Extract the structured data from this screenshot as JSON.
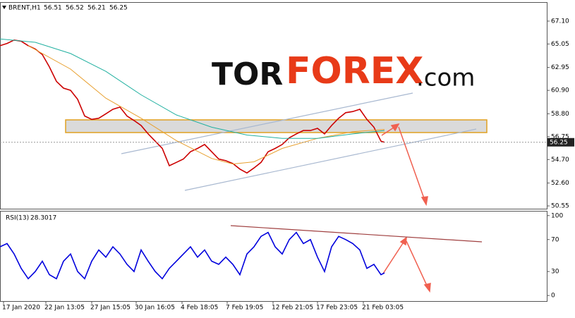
{
  "logo": {
    "part1": "TOR",
    "part2": "FOREX",
    "part3": ".com"
  },
  "chart_data": [
    {
      "type": "line",
      "title": "BRENT,H1",
      "ohlc": [
        56.51,
        56.52,
        56.21,
        56.25
      ],
      "last_price": 56.25,
      "xlim": [
        0,
        775
      ],
      "ylim": [
        50.3,
        68.8
      ],
      "yticks": [
        {
          "value": 67.1,
          "label": "67.10"
        },
        {
          "value": 65.05,
          "label": "65.05"
        },
        {
          "value": 62.95,
          "label": "62.95"
        },
        {
          "value": 60.9,
          "label": "60.90"
        },
        {
          "value": 58.8,
          "label": "58.80"
        },
        {
          "value": 56.75,
          "label": "56.75"
        },
        {
          "value": 54.7,
          "label": "54.70"
        },
        {
          "value": 52.6,
          "label": "52.60"
        },
        {
          "value": 50.55,
          "label": "50.55"
        }
      ],
      "series": [
        {
          "color": "#cc0000",
          "x": [
            0,
            10,
            20,
            30,
            40,
            50,
            60,
            70,
            80,
            90,
            100,
            110,
            120,
            130,
            140,
            150,
            160,
            170,
            180,
            190,
            200,
            210,
            220,
            230,
            240,
            250,
            260,
            270,
            280,
            290,
            300,
            310,
            320,
            330,
            340,
            350,
            360,
            370,
            380,
            390,
            400,
            410,
            420,
            430,
            440,
            450,
            460,
            470,
            480,
            490,
            500,
            510,
            520,
            530,
            540,
            545
          ],
          "values": [
            64.9,
            65.1,
            65.4,
            65.3,
            64.9,
            64.6,
            64.1,
            63.0,
            61.7,
            61.1,
            60.9,
            60.1,
            58.6,
            58.3,
            58.4,
            58.8,
            59.2,
            59.4,
            58.6,
            58.2,
            57.75,
            57.0,
            56.35,
            55.7,
            54.15,
            54.45,
            54.75,
            55.4,
            55.7,
            56.05,
            55.4,
            54.75,
            54.6,
            54.35,
            53.85,
            53.5,
            53.95,
            54.45,
            55.4,
            55.7,
            56.05,
            56.65,
            57.0,
            57.3,
            57.3,
            57.5,
            57.0,
            57.75,
            58.4,
            58.9,
            59.0,
            59.2,
            58.3,
            57.6,
            56.35,
            56.25
          ]
        },
        {
          "color": "#e8a030",
          "x": [
            40,
            100,
            150,
            200,
            250,
            300,
            330,
            360,
            400,
            450,
            500,
            545
          ],
          "values": [
            64.9,
            62.8,
            60.2,
            58.4,
            56.4,
            54.8,
            54.3,
            54.5,
            55.7,
            56.6,
            57.2,
            57.4
          ]
        },
        {
          "color": "#20b0a0",
          "x": [
            0,
            50,
            100,
            150,
            200,
            250,
            300,
            350,
            400,
            450,
            500,
            545
          ],
          "values": [
            65.5,
            65.2,
            64.2,
            62.6,
            60.5,
            58.7,
            57.6,
            56.9,
            56.6,
            56.6,
            57.0,
            57.3
          ]
        }
      ]
    },
    {
      "type": "line",
      "title": "RSI(13)",
      "last_value": 28.3017,
      "xlim": [
        0,
        775
      ],
      "ylim": [
        -7,
        106
      ],
      "yticks": [
        100,
        70,
        30,
        0
      ],
      "xticks": [
        {
          "value": 5,
          "label": "17 Jan 2020"
        },
        {
          "value": 65,
          "label": "22 Jan 13:05"
        },
        {
          "value": 130,
          "label": "27 Jan 15:05"
        },
        {
          "value": 193,
          "label": "30 Jan 16:05"
        },
        {
          "value": 258,
          "label": "4 Feb 18:05"
        },
        {
          "value": 322,
          "label": "7 Feb 19:05"
        },
        {
          "value": 387,
          "label": "12 Feb 21:05"
        },
        {
          "value": 450,
          "label": "17 Feb 23:05"
        },
        {
          "value": 515,
          "label": "21 Feb 03:05"
        }
      ],
      "series": [
        {
          "color": "#0000dd",
          "x": [
            0,
            10,
            20,
            30,
            40,
            50,
            60,
            70,
            80,
            90,
            100,
            110,
            120,
            130,
            140,
            150,
            160,
            170,
            180,
            190,
            200,
            210,
            220,
            230,
            240,
            250,
            260,
            270,
            280,
            290,
            300,
            310,
            320,
            330,
            340,
            350,
            360,
            370,
            380,
            390,
            400,
            410,
            420,
            430,
            440,
            450,
            460,
            470,
            480,
            490,
            500,
            510,
            520,
            530,
            540,
            545
          ],
          "values": [
            61,
            65,
            52,
            34,
            21,
            30,
            43,
            26,
            21,
            43,
            52,
            30,
            21,
            43,
            57,
            48,
            61,
            52,
            39,
            30,
            57,
            43,
            30,
            21,
            34,
            43,
            52,
            61,
            48,
            57,
            43,
            39,
            48,
            39,
            26,
            52,
            61,
            74,
            79,
            61,
            52,
            70,
            79,
            65,
            70,
            48,
            30,
            61,
            74,
            70,
            65,
            57,
            34,
            39,
            26,
            28.3
          ]
        }
      ]
    }
  ]
}
